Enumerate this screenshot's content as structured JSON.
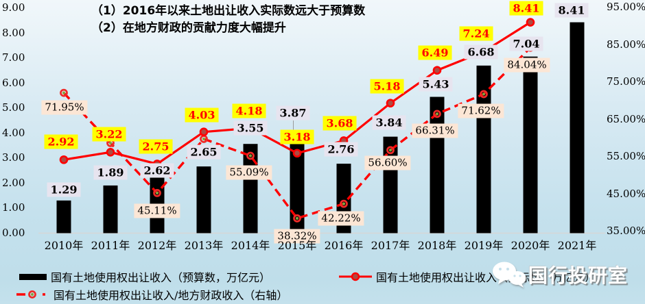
{
  "title": {
    "line1": "（1）2016年以来土地出让收入实际数远大于预算数",
    "line2": "（2）在地方财政的贡献力度大幅提升"
  },
  "chart_data": {
    "type": "combo-bar-line",
    "categories": [
      "2010年",
      "2011年",
      "2012年",
      "2013年",
      "2014年",
      "2015年",
      "2016年",
      "2017年",
      "2018年",
      "2019年",
      "2020年",
      "2021年"
    ],
    "series": [
      {
        "name": "国有土地使用权出让收入（预算数，万亿元）",
        "type": "bar",
        "axis": "left",
        "color": "#000000",
        "values": [
          1.29,
          1.89,
          2.62,
          2.65,
          3.55,
          3.87,
          2.76,
          3.84,
          5.43,
          6.68,
          7.04,
          8.41
        ],
        "labels": [
          "1.29",
          "1.89",
          "2.62",
          "2.65",
          "3.55",
          "3.87",
          "2.76",
          "3.84",
          "5.43",
          "6.68",
          "7.04",
          "8.41"
        ],
        "label_style": "gray"
      },
      {
        "name": "国有土地使用权出让收入（实际数，万亿元）",
        "type": "line",
        "axis": "left",
        "color": "#FF0000",
        "marker_fill": "#AF4A42",
        "values": [
          2.92,
          3.22,
          2.75,
          4.03,
          4.18,
          3.18,
          3.68,
          5.18,
          6.49,
          7.24,
          8.41,
          null
        ],
        "labels": [
          "2.92",
          "3.22",
          "2.75",
          "4.03",
          "4.18",
          "3.18",
          "3.68",
          "5.18",
          "6.49",
          "7.24",
          "8.41",
          ""
        ],
        "label_style": "yellow"
      },
      {
        "name": "国有土地使用权出让收入/地方财政收入（右轴）",
        "type": "line-dashed",
        "axis": "right",
        "color": "#FF0000",
        "marker_ring": "#EE2B28",
        "marker_center": "#81A33F",
        "values": [
          71.95,
          58.5,
          45.11,
          59.6,
          55.09,
          38.32,
          42.22,
          56.6,
          66.31,
          71.62,
          84.04,
          null
        ],
        "labels": [
          "71.95%",
          "",
          "45.11%",
          "",
          "55.09%",
          "38.32%",
          "42.22%",
          "56.60%",
          "66.31%",
          "71.62%",
          "84.04%",
          ""
        ],
        "label_style": "peach"
      }
    ],
    "left_axis": {
      "min": 0,
      "max": 9,
      "ticks": [
        {
          "v": 9,
          "label": "9.00"
        },
        {
          "v": 8,
          "label": "8.00"
        },
        {
          "v": 7,
          "label": "7.00"
        },
        {
          "v": 6,
          "label": "6.00"
        },
        {
          "v": 5,
          "label": "5.00"
        },
        {
          "v": 4,
          "label": "4.00"
        },
        {
          "v": 3,
          "label": "3.00"
        },
        {
          "v": 2,
          "label": "2.00"
        },
        {
          "v": 1,
          "label": "1.00"
        },
        {
          "v": 0,
          "label": "0.00"
        }
      ]
    },
    "right_axis": {
      "min": 35,
      "max": 95,
      "ticks": [
        {
          "v": 95,
          "label": "95.00%"
        },
        {
          "v": 85,
          "label": "85.00%"
        },
        {
          "v": 75,
          "label": "75.00%"
        },
        {
          "v": 65,
          "label": "65.00%"
        },
        {
          "v": 55,
          "label": "55.00%"
        },
        {
          "v": 45,
          "label": "45.00%"
        },
        {
          "v": 35,
          "label": "35.00%"
        }
      ]
    },
    "grid": "off",
    "legend_position": "bottom",
    "layout_label_offsets": {
      "bar": [
        [
          0,
          5
        ],
        [
          0,
          2
        ],
        [
          0,
          26
        ],
        [
          0,
          0
        ],
        [
          0,
          -2
        ],
        [
          -6,
          -13
        ],
        [
          -4,
          0
        ],
        [
          -2,
          0
        ],
        [
          -2,
          3
        ],
        [
          -4,
          1
        ],
        [
          -6,
          2
        ],
        [
          -8,
          3
        ]
      ],
      "actual": [
        [
          -4,
          0
        ],
        [
          -2,
          0
        ],
        [
          -2,
          1
        ],
        [
          -3,
          1
        ],
        [
          -2,
          1
        ],
        [
          0,
          2
        ],
        [
          -6,
          1
        ],
        [
          -5,
          1
        ],
        [
          -3,
          0
        ],
        [
          -11,
          0
        ],
        [
          -6,
          5
        ],
        [
          0,
          0
        ]
      ],
      "ratio": [
        [
          1,
          -4
        ],
        [
          0,
          0
        ],
        [
          0,
          1
        ],
        [
          0,
          0
        ],
        [
          -2,
          -1
        ],
        [
          0,
          1
        ],
        [
          -4,
          -4
        ],
        [
          -4,
          -6
        ],
        [
          -3,
          0
        ],
        [
          -4,
          0
        ],
        [
          -5,
          0
        ],
        [
          0,
          0
        ]
      ]
    }
  },
  "colors": {
    "background_top": "#F1F7FA",
    "background_bottom": "#BFDEEA",
    "bar": "#000000",
    "line_red": "#FF0000",
    "label_yellow_bg": "#FFFF00",
    "label_gray_bg": "#E7E4EF",
    "label_peach_bg": "#FCE6D5",
    "label_red_text": "#FF0000",
    "axis_line": "#D6D6D6"
  },
  "legend": {
    "items": [
      {
        "label": "国有土地使用权出让收入（预算数，万亿元）",
        "swatch": "bar-swatch"
      },
      {
        "label": "国有土地使用权出让收入（实际数，万亿元）",
        "swatch": "solid-line-swatch"
      },
      {
        "label": "国有土地使用权出让收入/地方财政收入（右轴）",
        "swatch": "dash-dot-line-swatch"
      }
    ]
  },
  "watermark": {
    "text": "国行投研室",
    "icon": "wechat-icon"
  }
}
